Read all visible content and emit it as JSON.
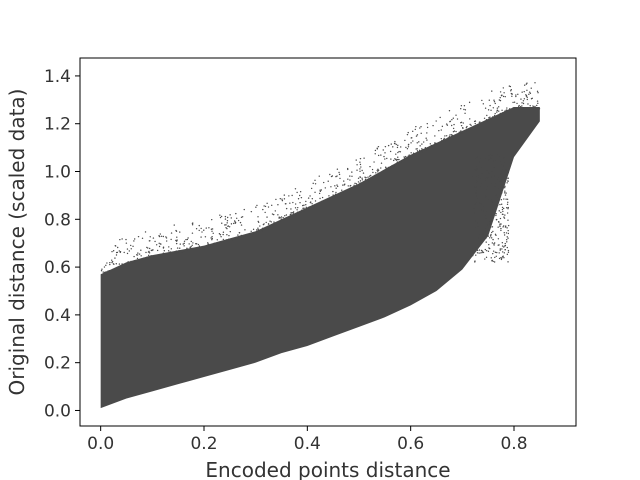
{
  "chart_data": {
    "type": "scatter",
    "title": "",
    "xlabel": "Encoded points distance",
    "ylabel": "Original distance (scaled data)",
    "xlim": [
      -0.04,
      0.92
    ],
    "ylim": [
      -0.065,
      1.475
    ],
    "xticks": [
      0.0,
      0.2,
      0.4,
      0.6,
      0.8
    ],
    "xtick_labels": [
      "0.0",
      "0.2",
      "0.4",
      "0.6",
      "0.8"
    ],
    "yticks": [
      0.0,
      0.2,
      0.4,
      0.6,
      0.8,
      1.0,
      1.2,
      1.4
    ],
    "ytick_labels": [
      "0.0",
      "0.2",
      "0.4",
      "0.6",
      "0.8",
      "1.0",
      "1.2",
      "1.4"
    ],
    "grid": false,
    "legend": "none",
    "marker_color": "#4a4a4a",
    "series": [
      {
        "approximate": true,
        "description_of_distribution": "dense point cloud",
        "x": [
          0.0,
          0.05,
          0.1,
          0.15,
          0.2,
          0.25,
          0.3,
          0.35,
          0.4,
          0.45,
          0.5,
          0.55,
          0.6,
          0.65,
          0.7,
          0.75,
          0.8,
          0.85
        ],
        "y_lower": [
          0.0,
          0.04,
          0.07,
          0.1,
          0.13,
          0.16,
          0.19,
          0.23,
          0.26,
          0.3,
          0.34,
          0.38,
          0.43,
          0.49,
          0.58,
          0.72,
          1.05,
          1.2
        ],
        "y_upper": [
          0.6,
          0.65,
          0.68,
          0.7,
          0.72,
          0.75,
          0.78,
          0.83,
          0.88,
          0.93,
          0.98,
          1.04,
          1.1,
          1.15,
          1.2,
          1.25,
          1.3,
          1.3
        ]
      }
    ]
  }
}
